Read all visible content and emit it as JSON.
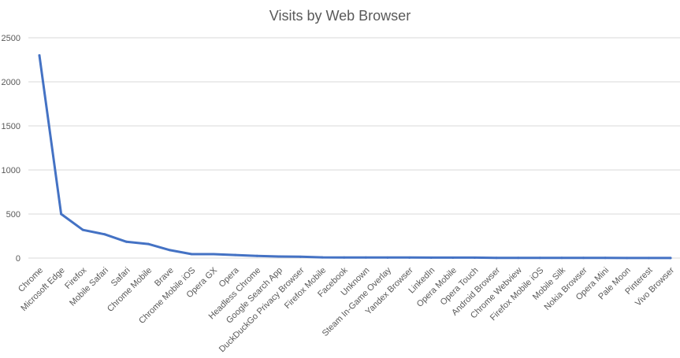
{
  "chart_data": {
    "type": "line",
    "title": "Visits by Web Browser",
    "xlabel": "",
    "ylabel": "",
    "ylim": [
      0,
      2500
    ],
    "yticks": [
      0,
      500,
      1000,
      1500,
      2000,
      2500
    ],
    "grid": true,
    "legend": "none",
    "line_color": "#4472c4",
    "categories": [
      "Chrome",
      "Microsoft Edge",
      "Firefox",
      "Mobile Safari",
      "Safari",
      "Chrome Mobile",
      "Brave",
      "Chrome Mobile iOS",
      "Opera GX",
      "Opera",
      "Headless Chrome",
      "Google Search App",
      "DuckDuckGo Privacy Browser",
      "Firefox Mobile",
      "Facebook",
      "Unknown",
      "Steam In-Game Overlay",
      "Yandex Browser",
      "LinkedIn",
      "Opera Mobile",
      "Opera Touch",
      "Android Browser",
      "Chrome Webview",
      "Firefox Mobile iOS",
      "Mobile Silk",
      "Nokia Browser",
      "Opera Mini",
      "Pale Moon",
      "Pinterest",
      "Vivo Browser"
    ],
    "values": [
      2300,
      500,
      320,
      270,
      185,
      160,
      90,
      45,
      45,
      35,
      25,
      18,
      15,
      8,
      7,
      7,
      6,
      6,
      5,
      5,
      5,
      2,
      2,
      2,
      2,
      2,
      2,
      1,
      1,
      1
    ]
  }
}
